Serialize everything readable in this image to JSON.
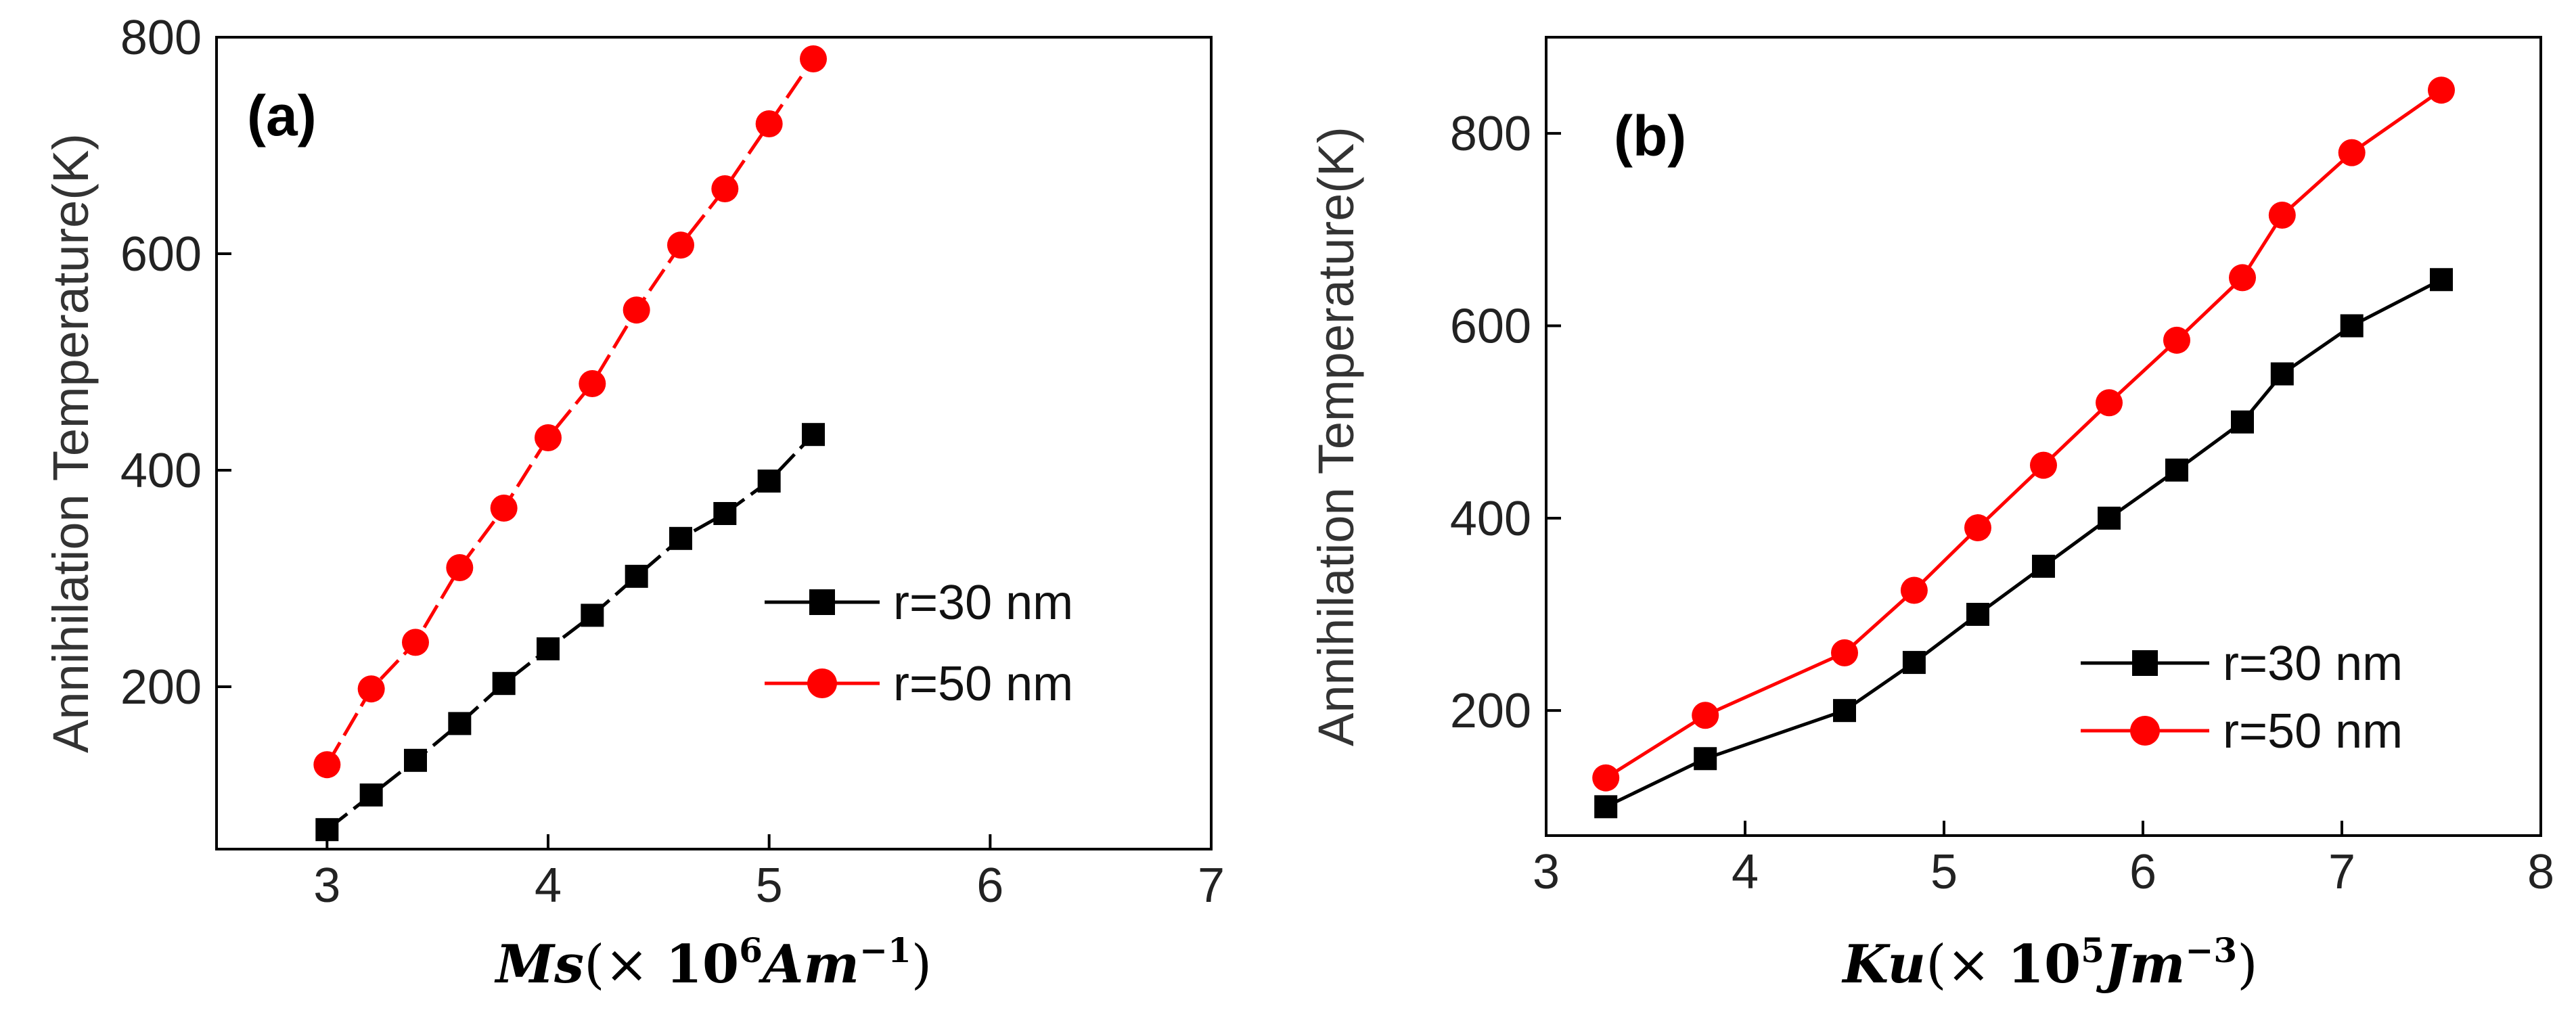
{
  "chart_data": [
    {
      "type": "line",
      "panel_label": "(a)",
      "ylabel": "Annihilation Temperature(K)",
      "xlabel_parts": {
        "sym": "Ms",
        "open": "(× ",
        "base": "10",
        "exp": "6",
        "unit": "Am",
        "unit_exp": "−1",
        "close": ")"
      },
      "xlim": [
        2.5,
        7
      ],
      "ylim": [
        50,
        800
      ],
      "xticks": [
        3,
        4,
        5,
        6,
        7
      ],
      "yticks": [
        200,
        400,
        600,
        800
      ],
      "legend_position": "center-right",
      "series": [
        {
          "name": "r=30 nm",
          "color": "#000000",
          "marker": "square",
          "linestyle": "dashed",
          "x": [
            3.0,
            3.2,
            3.4,
            3.6,
            3.8,
            4.0,
            4.2,
            4.4,
            4.6,
            4.8,
            5.0,
            5.2
          ],
          "y": [
            68,
            100,
            132,
            166,
            203,
            235,
            266,
            302,
            337,
            360,
            390,
            433
          ]
        },
        {
          "name": "r=50 nm",
          "color": "#ff0000",
          "marker": "circle",
          "linestyle": "dashed",
          "x": [
            3.0,
            3.2,
            3.4,
            3.6,
            3.8,
            4.0,
            4.2,
            4.4,
            4.6,
            4.8,
            5.0,
            5.2
          ],
          "y": [
            128,
            198,
            241,
            310,
            365,
            430,
            480,
            548,
            608,
            660,
            720,
            780
          ]
        }
      ]
    },
    {
      "type": "line",
      "panel_label": "(b)",
      "ylabel": "Annihilation Temperature(K)",
      "xlabel_parts": {
        "sym": "Ku",
        "open": "(× ",
        "base": "10",
        "exp": "5",
        "unit": "Jm",
        "unit_exp": "−3",
        "close": ")"
      },
      "xlim": [
        3,
        8
      ],
      "ylim": [
        70,
        900
      ],
      "xticks": [
        3,
        4,
        5,
        6,
        7,
        8
      ],
      "yticks": [
        200,
        400,
        600,
        800
      ],
      "legend_position": "lower-right",
      "series": [
        {
          "name": "r=30 nm",
          "color": "#000000",
          "marker": "square",
          "linestyle": "solid",
          "x": [
            3.3,
            3.8,
            4.5,
            4.85,
            5.17,
            5.5,
            5.83,
            6.17,
            6.5,
            6.7,
            7.05,
            7.5
          ],
          "y": [
            100,
            150,
            200,
            250,
            300,
            350,
            400,
            450,
            500,
            550,
            600,
            648
          ]
        },
        {
          "name": "r=50 nm",
          "color": "#ff0000",
          "marker": "circle",
          "linestyle": "solid",
          "x": [
            3.3,
            3.8,
            4.5,
            4.85,
            5.17,
            5.5,
            5.83,
            6.17,
            6.5,
            6.7,
            7.05,
            7.5
          ],
          "y": [
            130,
            195,
            260,
            325,
            390,
            455,
            520,
            585,
            650,
            715,
            780,
            845
          ]
        }
      ]
    }
  ]
}
